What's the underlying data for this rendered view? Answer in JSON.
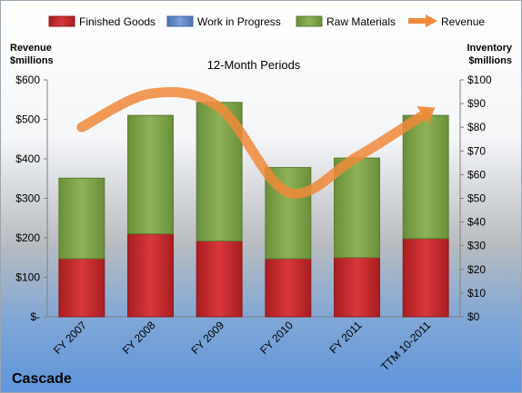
{
  "chart_data": {
    "type": "bar",
    "subtitle": "12-Month Periods",
    "company": "Cascade",
    "left_axis_title": [
      "Revenue",
      "$millions"
    ],
    "right_axis_title": [
      "Inventory",
      "$millions"
    ],
    "categories": [
      "FY 2007",
      "FY 2008",
      "FY 2009",
      "FY 2010",
      "FY 2011",
      "TTM 10-2011"
    ],
    "left_ticks": [
      "$-",
      "$100",
      "$200",
      "$300",
      "$400",
      "$500",
      "$600"
    ],
    "right_ticks": [
      "$0",
      "$10",
      "$20",
      "$30",
      "$40",
      "$50",
      "$60",
      "$70",
      "$80",
      "$90",
      "$100"
    ],
    "left_ylim": [
      0,
      600
    ],
    "right_ylim": [
      0,
      100
    ],
    "legend_position": "top",
    "grid": false,
    "series": [
      {
        "name": "Finished Goods",
        "kind": "stacked-bar",
        "axis": "right",
        "color": "#c0262a",
        "values": [
          24.5,
          35.0,
          32.0,
          24.5,
          25.0,
          33.0
        ]
      },
      {
        "name": "Work in Progress",
        "kind": "stacked-bar",
        "axis": "right",
        "color": "#5b84c4",
        "values": [
          0,
          0,
          0,
          0,
          0,
          0
        ]
      },
      {
        "name": "Raw Materials",
        "kind": "stacked-bar",
        "axis": "right",
        "color": "#7ba046",
        "values": [
          34.0,
          50.0,
          58.5,
          38.5,
          42.0,
          52.0
        ]
      },
      {
        "name": "Revenue",
        "kind": "line",
        "axis": "left",
        "color": "#f0893a",
        "values": [
          480,
          565,
          530,
          315,
          405,
          515
        ]
      }
    ]
  }
}
